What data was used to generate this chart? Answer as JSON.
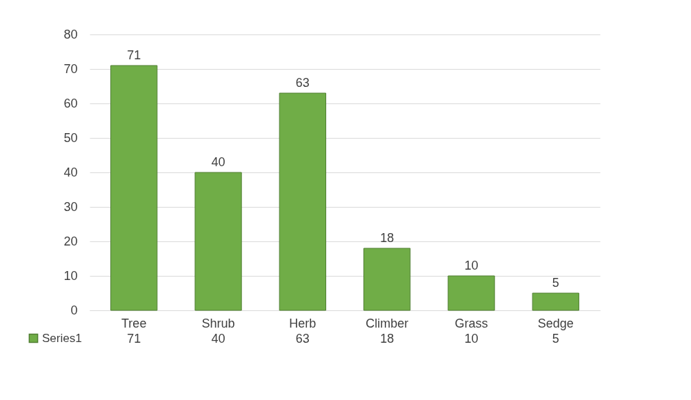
{
  "chart_data": {
    "type": "bar",
    "categories": [
      "Tree",
      "Shrub",
      "Herb",
      "Climber",
      "Grass",
      "Sedge"
    ],
    "series": [
      {
        "name": "Series1",
        "color": "#70ad47",
        "values": [
          71,
          40,
          63,
          18,
          10,
          5
        ],
        "value_labels": [
          "71",
          "40",
          "63",
          "18",
          "10",
          "5"
        ]
      }
    ],
    "ylim": [
      0,
      80
    ],
    "yticks": [
      0,
      10,
      20,
      30,
      40,
      50,
      60,
      70,
      80
    ],
    "annotations": [
      "71",
      "40",
      "63",
      "18",
      "10",
      "5"
    ],
    "grid": "y",
    "legend": "bottom left"
  }
}
